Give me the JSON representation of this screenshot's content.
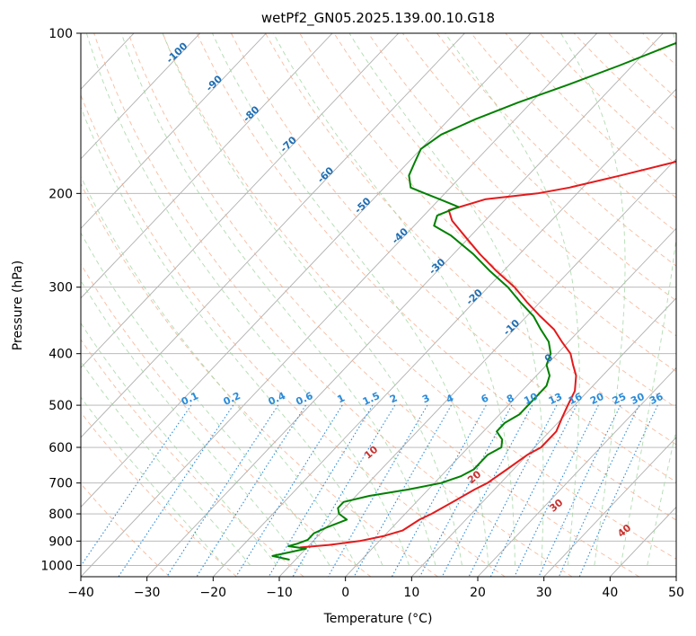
{
  "chart_data": {
    "type": "line",
    "title": "wetPf2_GN05.2025.139.00.10.G18",
    "xlabel": "Temperature (°C)",
    "ylabel": "Pressure (hPa)",
    "xlim": [
      -40,
      50
    ],
    "ylim": [
      1050,
      100
    ],
    "y_scale": "log",
    "x_ticks": [
      -40,
      -30,
      -20,
      -10,
      0,
      10,
      20,
      30,
      40,
      50
    ],
    "y_ticks": [
      100,
      200,
      300,
      400,
      500,
      600,
      700,
      800,
      900,
      1000
    ],
    "grid": true,
    "isotherm_labels": [
      "-100",
      "-90",
      "-80",
      "-70",
      "-60",
      "-50",
      "-40",
      "-30",
      "-20",
      "-10",
      "0"
    ],
    "isotherm_values": [
      -100,
      -90,
      -80,
      -70,
      -60,
      -50,
      -40,
      -30,
      -20,
      -10,
      0
    ],
    "mixing_ratio_labels": [
      "0.1",
      "0.2",
      "0.4",
      "0.6",
      "1",
      "1.5",
      "2",
      "3",
      "4",
      "6",
      "8",
      "10",
      "13",
      "16",
      "20",
      "25",
      "30",
      "36"
    ],
    "mixing_ratio_values": [
      0.1,
      0.2,
      0.4,
      0.6,
      1,
      1.5,
      2,
      3,
      4,
      6,
      8,
      10,
      13,
      16,
      20,
      25,
      30,
      36
    ],
    "moist_adiabat_labels": [
      "10",
      "20",
      "30",
      "40"
    ],
    "moist_adiabat_values": [
      10,
      20,
      30,
      40
    ],
    "series": [
      {
        "color": "#e41a1c",
        "pressure": [
          925,
          915,
          900,
          880,
          860,
          820,
          800,
          760,
          720,
          700,
          660,
          620,
          600,
          560,
          530,
          500,
          470,
          440,
          420,
          400,
          380,
          360,
          340,
          320,
          300,
          280,
          260,
          240,
          225,
          215,
          205,
          200,
          195,
          185,
          175,
          165,
          150,
          140,
          130,
          120,
          110,
          100
        ],
        "temperature": [
          -11,
          -7,
          -3,
          0,
          2,
          3,
          4,
          5.5,
          7,
          8,
          9,
          10,
          11,
          11,
          10,
          9,
          8,
          6,
          4,
          2,
          -1,
          -4,
          -8,
          -12,
          -16,
          -21,
          -26,
          -31,
          -35,
          -37,
          -33,
          -26,
          -22,
          -16,
          -10,
          -6,
          -1,
          2,
          5,
          7,
          8,
          10
        ]
      },
      {
        "color": "#008000",
        "pressure": [
          975,
          960,
          945,
          930,
          920,
          910,
          895,
          870,
          850,
          820,
          800,
          780,
          760,
          740,
          720,
          700,
          680,
          660,
          640,
          620,
          600,
          580,
          560,
          540,
          520,
          500,
          480,
          460,
          440,
          420,
          400,
          380,
          360,
          340,
          320,
          300,
          280,
          260,
          240,
          230,
          220,
          212,
          205,
          200,
          195,
          185,
          175,
          165,
          155,
          145,
          135,
          125,
          115,
          105,
          100
        ],
        "temperature": [
          -11,
          -14,
          -12,
          -10,
          -13,
          -12,
          -11,
          -11,
          -10,
          -8,
          -10,
          -11,
          -11,
          -8,
          -3,
          1,
          3,
          4,
          4,
          4,
          5,
          4,
          2,
          2,
          3,
          3,
          3,
          3,
          2,
          0,
          -1,
          -3,
          -6,
          -9,
          -13,
          -17,
          -22,
          -27,
          -33,
          -37,
          -38,
          -36,
          -40,
          -43,
          -46,
          -48,
          -49,
          -50,
          -49,
          -46,
          -42,
          -37,
          -32,
          -27,
          -24
        ]
      }
    ]
  }
}
